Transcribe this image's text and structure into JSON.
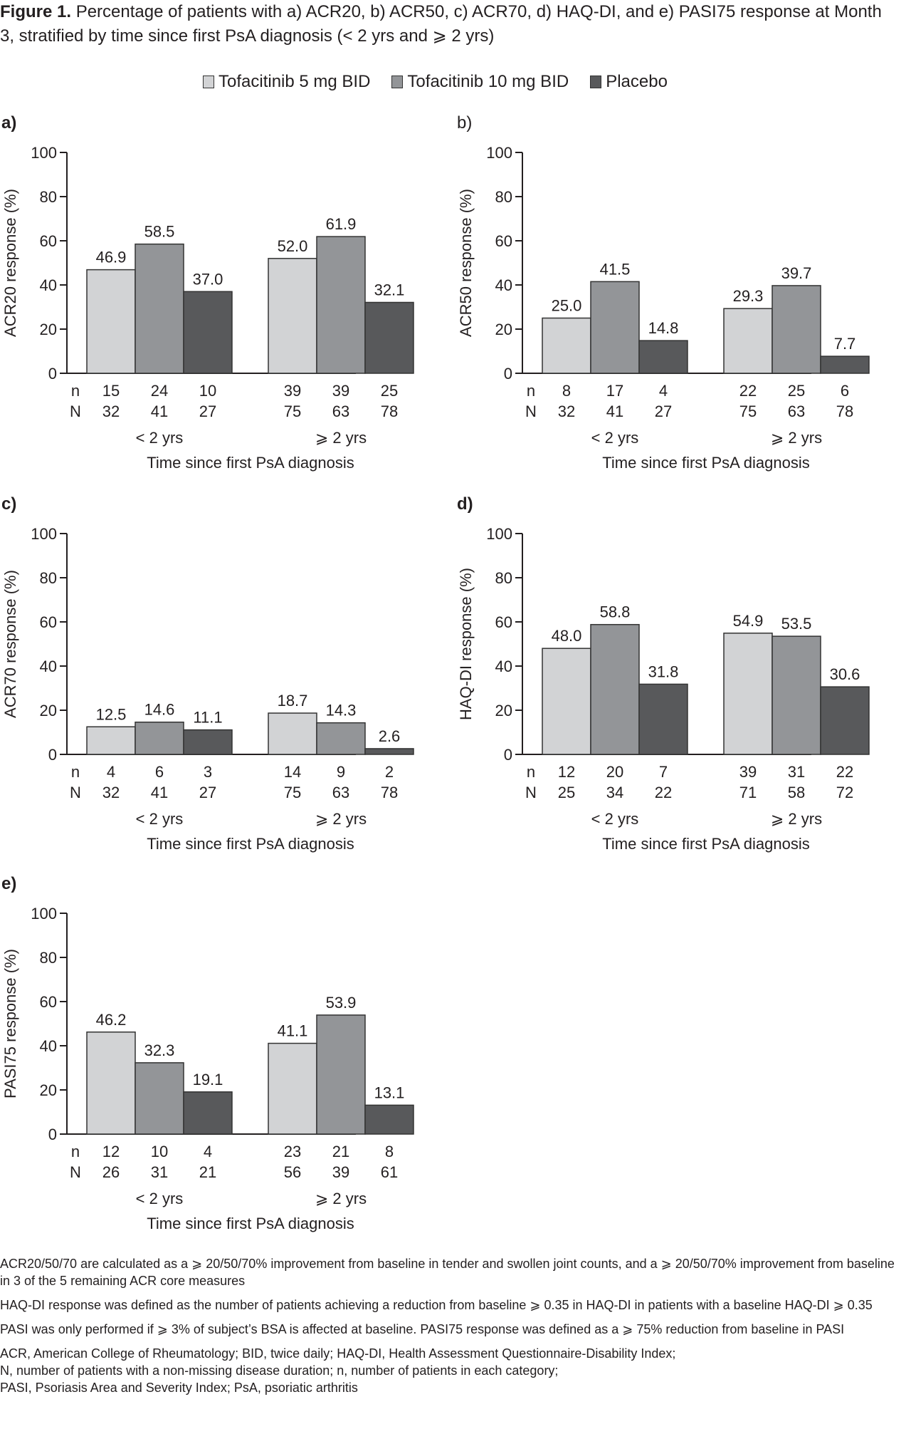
{
  "figure": {
    "label": "Figure 1.",
    "title_text": "Percentage of patients with a) ACR20, b) ACR50, c) ACR70, d) HAQ-DI, and e) PASI75 response at Month 3, stratified by time since first PsA diagnosis (< 2 yrs and ⩾ 2 yrs)"
  },
  "legend": [
    {
      "name": "Tofacitinib 5 mg BID",
      "color": "#d2d3d5"
    },
    {
      "name": "Tofacitinib 10 mg BID",
      "color": "#939598"
    },
    {
      "name": "Placebo",
      "color": "#58595b"
    }
  ],
  "chart_data": [
    {
      "type": "bar",
      "panel": "a)",
      "ylabel": "ACR20 response (%)",
      "xlabel": "Time since first PsA diagnosis",
      "categories": [
        "< 2 yrs",
        "⩾ 2 yrs"
      ],
      "ylim": [
        0,
        100
      ],
      "yticks": [
        0,
        20,
        40,
        60,
        80,
        100
      ],
      "series": [
        {
          "name": "Tofacitinib 5 mg BID",
          "values": [
            46.9,
            52.0
          ],
          "labels": [
            "46.9",
            "52.0"
          ],
          "n": [
            15,
            39
          ],
          "N": [
            32,
            75
          ]
        },
        {
          "name": "Tofacitinib 10 mg BID",
          "values": [
            58.5,
            61.9
          ],
          "labels": [
            "58.5",
            "61.9"
          ],
          "n": [
            24,
            39
          ],
          "N": [
            41,
            63
          ]
        },
        {
          "name": "Placebo",
          "values": [
            37.0,
            32.1
          ],
          "labels": [
            "37.0",
            "32.1"
          ],
          "n": [
            10,
            25
          ],
          "N": [
            27,
            78
          ]
        }
      ]
    },
    {
      "type": "bar",
      "panel": "b)",
      "ylabel": "ACR50 response (%)",
      "xlabel": "Time since first PsA diagnosis",
      "categories": [
        "< 2 yrs",
        "⩾ 2 yrs"
      ],
      "ylim": [
        0,
        100
      ],
      "yticks": [
        0,
        20,
        40,
        60,
        80,
        100
      ],
      "series": [
        {
          "name": "Tofacitinib 5 mg BID",
          "values": [
            25.0,
            29.3
          ],
          "labels": [
            "25.0",
            "29.3"
          ],
          "n": [
            8,
            22
          ],
          "N": [
            32,
            75
          ]
        },
        {
          "name": "Tofacitinib 10 mg BID",
          "values": [
            41.5,
            39.7
          ],
          "labels": [
            "41.5",
            "39.7"
          ],
          "n": [
            17,
            25
          ],
          "N": [
            41,
            63
          ]
        },
        {
          "name": "Placebo",
          "values": [
            14.8,
            7.7
          ],
          "labels": [
            "14.8",
            "7.7"
          ],
          "n": [
            4,
            6
          ],
          "N": [
            27,
            78
          ]
        }
      ]
    },
    {
      "type": "bar",
      "panel": "c)",
      "ylabel": "ACR70 response (%)",
      "xlabel": "Time since first PsA diagnosis",
      "categories": [
        "< 2 yrs",
        "⩾ 2 yrs"
      ],
      "ylim": [
        0,
        100
      ],
      "yticks": [
        0,
        20,
        40,
        60,
        80,
        100
      ],
      "series": [
        {
          "name": "Tofacitinib 5 mg BID",
          "values": [
            12.5,
            18.7
          ],
          "labels": [
            "12.5",
            "18.7"
          ],
          "n": [
            4,
            14
          ],
          "N": [
            32,
            75
          ]
        },
        {
          "name": "Tofacitinib 10 mg BID",
          "values": [
            14.6,
            14.3
          ],
          "labels": [
            "14.6",
            "14.3"
          ],
          "n": [
            6,
            9
          ],
          "N": [
            41,
            63
          ]
        },
        {
          "name": "Placebo",
          "values": [
            11.1,
            2.6
          ],
          "labels": [
            "11.1",
            "2.6"
          ],
          "n": [
            3,
            2
          ],
          "N": [
            27,
            78
          ]
        }
      ]
    },
    {
      "type": "bar",
      "panel": "d)",
      "ylabel": "HAQ-DI response (%)",
      "xlabel": "Time since first PsA diagnosis",
      "categories": [
        "< 2 yrs",
        "⩾ 2 yrs"
      ],
      "ylim": [
        0,
        100
      ],
      "yticks": [
        0,
        20,
        40,
        60,
        80,
        100
      ],
      "series": [
        {
          "name": "Tofacitinib 5 mg BID",
          "values": [
            48.0,
            54.9
          ],
          "labels": [
            "48.0",
            "54.9"
          ],
          "n": [
            12,
            39
          ],
          "N": [
            25,
            71
          ]
        },
        {
          "name": "Tofacitinib 10 mg BID",
          "values": [
            58.8,
            53.5
          ],
          "labels": [
            "58.8",
            "53.5"
          ],
          "n": [
            20,
            31
          ],
          "N": [
            34,
            58
          ]
        },
        {
          "name": "Placebo",
          "values": [
            31.8,
            30.6
          ],
          "labels": [
            "31.8",
            "30.6"
          ],
          "n": [
            7,
            22
          ],
          "N": [
            22,
            72
          ]
        }
      ]
    },
    {
      "type": "bar",
      "panel": "e)",
      "ylabel": "PASI75 response (%)",
      "xlabel": "Time since first PsA diagnosis",
      "categories": [
        "< 2 yrs",
        "⩾ 2 yrs"
      ],
      "ylim": [
        0,
        100
      ],
      "yticks": [
        0,
        20,
        40,
        60,
        80,
        100
      ],
      "series": [
        {
          "name": "Tofacitinib 5 mg BID",
          "values": [
            46.2,
            41.1
          ],
          "labels": [
            "46.2",
            "41.1"
          ],
          "n": [
            12,
            23
          ],
          "N": [
            26,
            56
          ]
        },
        {
          "name": "Tofacitinib 10 mg BID",
          "values": [
            32.3,
            53.9
          ],
          "labels": [
            "32.3",
            "53.9"
          ],
          "n": [
            10,
            21
          ],
          "N": [
            31,
            39
          ]
        },
        {
          "name": "Placebo",
          "values": [
            19.1,
            13.1
          ],
          "labels": [
            "19.1",
            "13.1"
          ],
          "n": [
            4,
            8
          ],
          "N": [
            21,
            61
          ]
        }
      ]
    }
  ],
  "row_labels": {
    "n": "n",
    "N": "N"
  },
  "footnotes": [
    "ACR20/50/70 are calculated as a ⩾ 20/50/70% improvement from baseline in tender and swollen joint counts, and a ⩾ 20/50/70% improvement from baseline in 3 of the 5 remaining ACR core measures",
    "HAQ-DI response was defined as the number of patients achieving a reduction from baseline ⩾ 0.35 in HAQ-DI in patients with a baseline HAQ-DI ⩾ 0.35",
    "PASI was only performed if ⩾ 3% of subject’s BSA is affected at baseline. PASI75 response was defined as a ⩾ 75% reduction from baseline in PASI"
  ],
  "abbreviations": [
    "ACR, American College of Rheumatology; BID, twice daily; HAQ-DI, Health Assessment Questionnaire-Disability Index;",
    "N, number of patients with a non-missing disease duration; n, number of patients in each category;",
    "PASI, Psoriasis Area and Severity Index; PsA, psoriatic arthritis"
  ]
}
